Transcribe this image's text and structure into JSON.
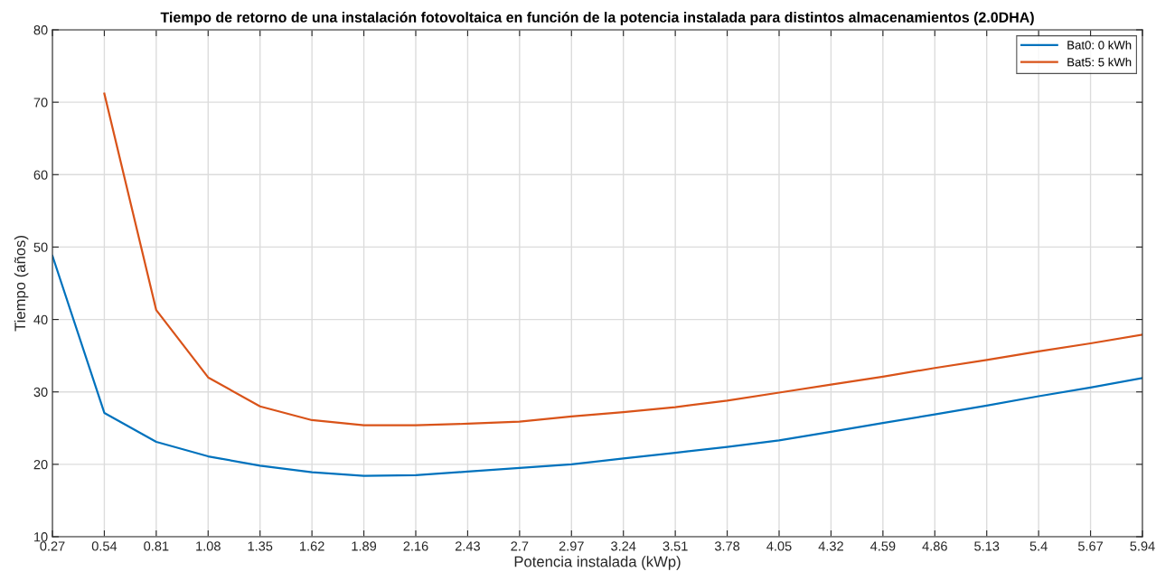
{
  "chart_data": {
    "type": "line",
    "title": "Tiempo de retorno de una instalación fotovoltaica en función de la potencia instalada para distintos almacenamientos (2.0DHA)",
    "xlabel": "Potencia instalada (kWp)",
    "ylabel": "Tiempo (años)",
    "x": [
      0.27,
      0.54,
      0.81,
      1.08,
      1.35,
      1.62,
      1.89,
      2.16,
      2.43,
      2.7,
      2.97,
      3.24,
      3.51,
      3.78,
      4.05,
      4.32,
      4.59,
      4.86,
      5.13,
      5.4,
      5.67,
      5.94
    ],
    "series": [
      {
        "name": "Bat0: 0 kWh",
        "color": "#0072bd",
        "values": [
          48.8,
          27.1,
          23.1,
          21.1,
          19.8,
          18.9,
          18.4,
          18.5,
          19.0,
          19.5,
          20.0,
          20.8,
          21.6,
          22.4,
          23.3,
          24.5,
          25.7,
          26.9,
          28.1,
          29.4,
          30.6,
          31.9
        ]
      },
      {
        "name": "Bat5: 5 kWh",
        "color": "#d95319",
        "values": [
          null,
          71.2,
          41.3,
          32.0,
          28.0,
          26.1,
          25.4,
          25.4,
          25.6,
          25.9,
          26.6,
          27.2,
          27.9,
          28.8,
          29.9,
          31.0,
          32.1,
          33.3,
          34.4,
          35.6,
          36.7,
          37.9
        ]
      }
    ],
    "xlim": [
      0.27,
      5.94
    ],
    "xticks": [
      0.27,
      0.54,
      0.81,
      1.08,
      1.35,
      1.62,
      1.89,
      2.16,
      2.43,
      2.7,
      2.97,
      3.24,
      3.51,
      3.78,
      4.05,
      4.32,
      4.59,
      4.86,
      5.13,
      5.4,
      5.67,
      5.94
    ],
    "ylim": [
      10,
      80
    ],
    "yticks": [
      10,
      20,
      30,
      40,
      50,
      60,
      70,
      80
    ],
    "grid": true,
    "legend": "top right",
    "marker": "none",
    "line_style": "solid"
  }
}
